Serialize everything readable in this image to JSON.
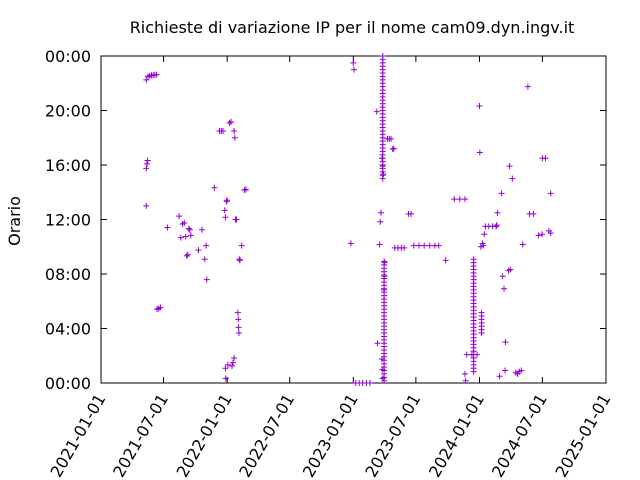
{
  "chart_data": {
    "type": "scatter",
    "title": "Richieste di variazione IP per il nome cam09.dyn.ingv.it",
    "xlabel": "",
    "ylabel": "Orario",
    "x_axis": {
      "kind": "date",
      "range": [
        "2021-01-01",
        "2025-01-01"
      ],
      "ticks": [
        "2021-01-01",
        "2021-07-01",
        "2022-01-01",
        "2022-07-01",
        "2023-01-01",
        "2023-07-01",
        "2024-01-01",
        "2024-07-01",
        "2025-01-01"
      ]
    },
    "y_axis": {
      "kind": "time-of-day",
      "range": [
        "00:00",
        "24:00"
      ],
      "ticks": [
        "00:00",
        "04:00",
        "08:00",
        "12:00",
        "16:00",
        "20:00",
        "00:00"
      ]
    },
    "grid": false,
    "legend": "none",
    "marker": "+",
    "color": "#9400d3",
    "points": [
      [
        "2021-05-12",
        "22:15"
      ],
      [
        "2021-05-17",
        "22:30"
      ],
      [
        "2021-05-22",
        "22:33"
      ],
      [
        "2021-05-27",
        "22:35"
      ],
      [
        "2021-06-01",
        "22:36"
      ],
      [
        "2021-06-06",
        "22:37"
      ],
      [
        "2021-06-11",
        "22:38"
      ],
      [
        "2021-05-12",
        "15:45"
      ],
      [
        "2021-05-14",
        "16:05"
      ],
      [
        "2021-05-16",
        "16:20"
      ],
      [
        "2021-05-12",
        "13:00"
      ],
      [
        "2021-06-12",
        "05:25"
      ],
      [
        "2021-06-17",
        "05:28"
      ],
      [
        "2021-06-22",
        "05:33"
      ],
      [
        "2021-07-12",
        "11:25"
      ],
      [
        "2021-08-15",
        "12:15"
      ],
      [
        "2021-08-20",
        "10:40"
      ],
      [
        "2021-08-25",
        "11:40"
      ],
      [
        "2021-08-30",
        "11:45"
      ],
      [
        "2021-09-03",
        "10:45"
      ],
      [
        "2021-09-06",
        "09:20"
      ],
      [
        "2021-09-09",
        "09:25"
      ],
      [
        "2021-09-12",
        "11:20"
      ],
      [
        "2021-09-15",
        "11:15"
      ],
      [
        "2021-09-18",
        "10:50"
      ],
      [
        "2021-10-10",
        "09:45"
      ],
      [
        "2021-10-20",
        "11:15"
      ],
      [
        "2021-10-28",
        "09:05"
      ],
      [
        "2021-11-01",
        "10:05"
      ],
      [
        "2021-11-03",
        "07:35"
      ],
      [
        "2021-11-25",
        "14:20"
      ],
      [
        "2021-12-10",
        "18:30"
      ],
      [
        "2021-12-15",
        "18:30"
      ],
      [
        "2021-12-20",
        "18:30"
      ],
      [
        "2021-12-25",
        "12:40"
      ],
      [
        "2021-12-27",
        "12:10"
      ],
      [
        "2021-12-30",
        "13:20"
      ],
      [
        "2022-01-01",
        "13:25"
      ],
      [
        "2021-12-27",
        "01:05"
      ],
      [
        "2021-12-28",
        "00:20"
      ],
      [
        "2022-01-03",
        "01:20"
      ],
      [
        "2022-01-08",
        "19:05"
      ],
      [
        "2022-01-12",
        "19:10"
      ],
      [
        "2022-01-15",
        "01:15"
      ],
      [
        "2022-01-18",
        "01:30"
      ],
      [
        "2022-01-21",
        "01:50"
      ],
      [
        "2022-01-21",
        "18:30"
      ],
      [
        "2022-01-23",
        "18:00"
      ],
      [
        "2022-01-25",
        "12:00"
      ],
      [
        "2022-01-28",
        "12:00"
      ],
      [
        "2022-02-01",
        "05:10"
      ],
      [
        "2022-02-02",
        "04:40"
      ],
      [
        "2022-02-03",
        "04:05"
      ],
      [
        "2022-02-04",
        "03:40"
      ],
      [
        "2022-02-05",
        "09:05"
      ],
      [
        "2022-02-07",
        "09:00"
      ],
      [
        "2022-02-12",
        "10:05"
      ],
      [
        "2022-02-20",
        "14:10"
      ],
      [
        "2022-02-24",
        "14:12"
      ],
      [
        "2022-12-25",
        "10:15"
      ],
      [
        "2023-01-01",
        "23:30"
      ],
      [
        "2023-01-03",
        "23:00"
      ],
      [
        "2023-01-08",
        "00:00"
      ],
      [
        "2023-01-18",
        "00:00"
      ],
      [
        "2023-01-28",
        "00:00"
      ],
      [
        "2023-02-08",
        "00:00"
      ],
      [
        "2023-02-18",
        "00:00"
      ],
      [
        "2023-03-10",
        "19:55"
      ],
      [
        "2023-03-12",
        "02:55"
      ],
      [
        "2023-03-18",
        "10:10"
      ],
      [
        "2023-03-20",
        "11:50"
      ],
      [
        "2023-03-22",
        "12:30"
      ],
      [
        "2023-03-25",
        "01:45"
      ],
      [
        "2023-03-26",
        "01:00"
      ],
      [
        "2023-03-27",
        "00:20"
      ],
      [
        "2023-03-25",
        "16:30"
      ],
      [
        "2023-03-27",
        "15:55"
      ],
      [
        "2023-03-29",
        "15:20"
      ],
      [
        "2023-03-31",
        "06:50"
      ],
      [
        "2023-04-01",
        "07:50"
      ],
      [
        "2023-04-02",
        "08:50"
      ],
      [
        "2023-04-10",
        "17:55"
      ],
      [
        "2023-04-15",
        "17:55"
      ],
      [
        "2023-04-20",
        "17:55"
      ],
      [
        "2023-04-25",
        "17:10"
      ],
      [
        "2023-04-28",
        "17:12"
      ],
      [
        "2023-05-01",
        "09:55"
      ],
      [
        "2023-05-10",
        "09:55"
      ],
      [
        "2023-05-20",
        "09:55"
      ],
      [
        "2023-05-28",
        "09:55"
      ],
      [
        "2023-06-10",
        "12:25"
      ],
      [
        "2023-06-17",
        "12:25"
      ],
      [
        "2023-06-25",
        "10:05"
      ],
      [
        "2023-07-10",
        "10:05"
      ],
      [
        "2023-07-25",
        "10:05"
      ],
      [
        "2023-08-10",
        "10:05"
      ],
      [
        "2023-08-25",
        "10:05"
      ],
      [
        "2023-09-05",
        "10:05"
      ],
      [
        "2023-09-25",
        "09:00"
      ],
      [
        "2023-10-20",
        "13:30"
      ],
      [
        "2023-11-05",
        "13:30"
      ],
      [
        "2023-11-20",
        "13:30"
      ],
      [
        "2023-11-25",
        "02:05"
      ],
      [
        "2023-12-10",
        "02:05"
      ],
      [
        "2023-12-25",
        "02:05"
      ],
      [
        "2023-11-20",
        "00:40"
      ],
      [
        "2023-11-22",
        "00:10"
      ],
      [
        "2024-01-01",
        "20:20"
      ],
      [
        "2024-01-02",
        "16:55"
      ],
      [
        "2024-01-05",
        "10:00"
      ],
      [
        "2024-01-10",
        "10:15"
      ],
      [
        "2024-01-12",
        "10:05"
      ],
      [
        "2024-01-15",
        "10:55"
      ],
      [
        "2024-01-18",
        "11:30"
      ],
      [
        "2024-01-28",
        "11:30"
      ],
      [
        "2024-02-08",
        "11:30"
      ],
      [
        "2024-02-18",
        "11:30"
      ],
      [
        "2024-02-20",
        "11:35"
      ],
      [
        "2024-02-22",
        "12:30"
      ],
      [
        "2024-02-28",
        "00:30"
      ],
      [
        "2024-03-05",
        "13:55"
      ],
      [
        "2024-03-08",
        "07:50"
      ],
      [
        "2024-03-12",
        "06:55"
      ],
      [
        "2024-03-15",
        "00:55"
      ],
      [
        "2024-03-16",
        "03:00"
      ],
      [
        "2024-03-25",
        "08:15"
      ],
      [
        "2024-03-30",
        "08:20"
      ],
      [
        "2024-03-28",
        "15:55"
      ],
      [
        "2024-04-05",
        "15:00"
      ],
      [
        "2024-04-15",
        "00:45"
      ],
      [
        "2024-04-20",
        "00:40"
      ],
      [
        "2024-04-25",
        "00:50"
      ],
      [
        "2024-05-01",
        "00:55"
      ],
      [
        "2024-05-05",
        "10:10"
      ],
      [
        "2024-05-20",
        "21:45"
      ],
      [
        "2024-05-25",
        "12:25"
      ],
      [
        "2024-06-05",
        "12:25"
      ],
      [
        "2024-06-20",
        "10:50"
      ],
      [
        "2024-06-30",
        "10:55"
      ],
      [
        "2024-07-01",
        "16:30"
      ],
      [
        "2024-07-10",
        "16:30"
      ],
      [
        "2024-07-20",
        "11:10"
      ],
      [
        "2024-07-25",
        "11:00"
      ],
      [
        "2024-07-25",
        "13:55"
      ]
    ],
    "vertical_runs": [
      {
        "date": "2023-03-27",
        "from": "15:00",
        "to": "24:00"
      },
      {
        "date": "2023-03-31",
        "from": "00:10",
        "to": "09:00"
      },
      {
        "date": "2023-12-15",
        "from": "00:50",
        "to": "09:15"
      },
      {
        "date": "2024-01-07",
        "from": "03:40",
        "to": "05:20"
      }
    ]
  }
}
